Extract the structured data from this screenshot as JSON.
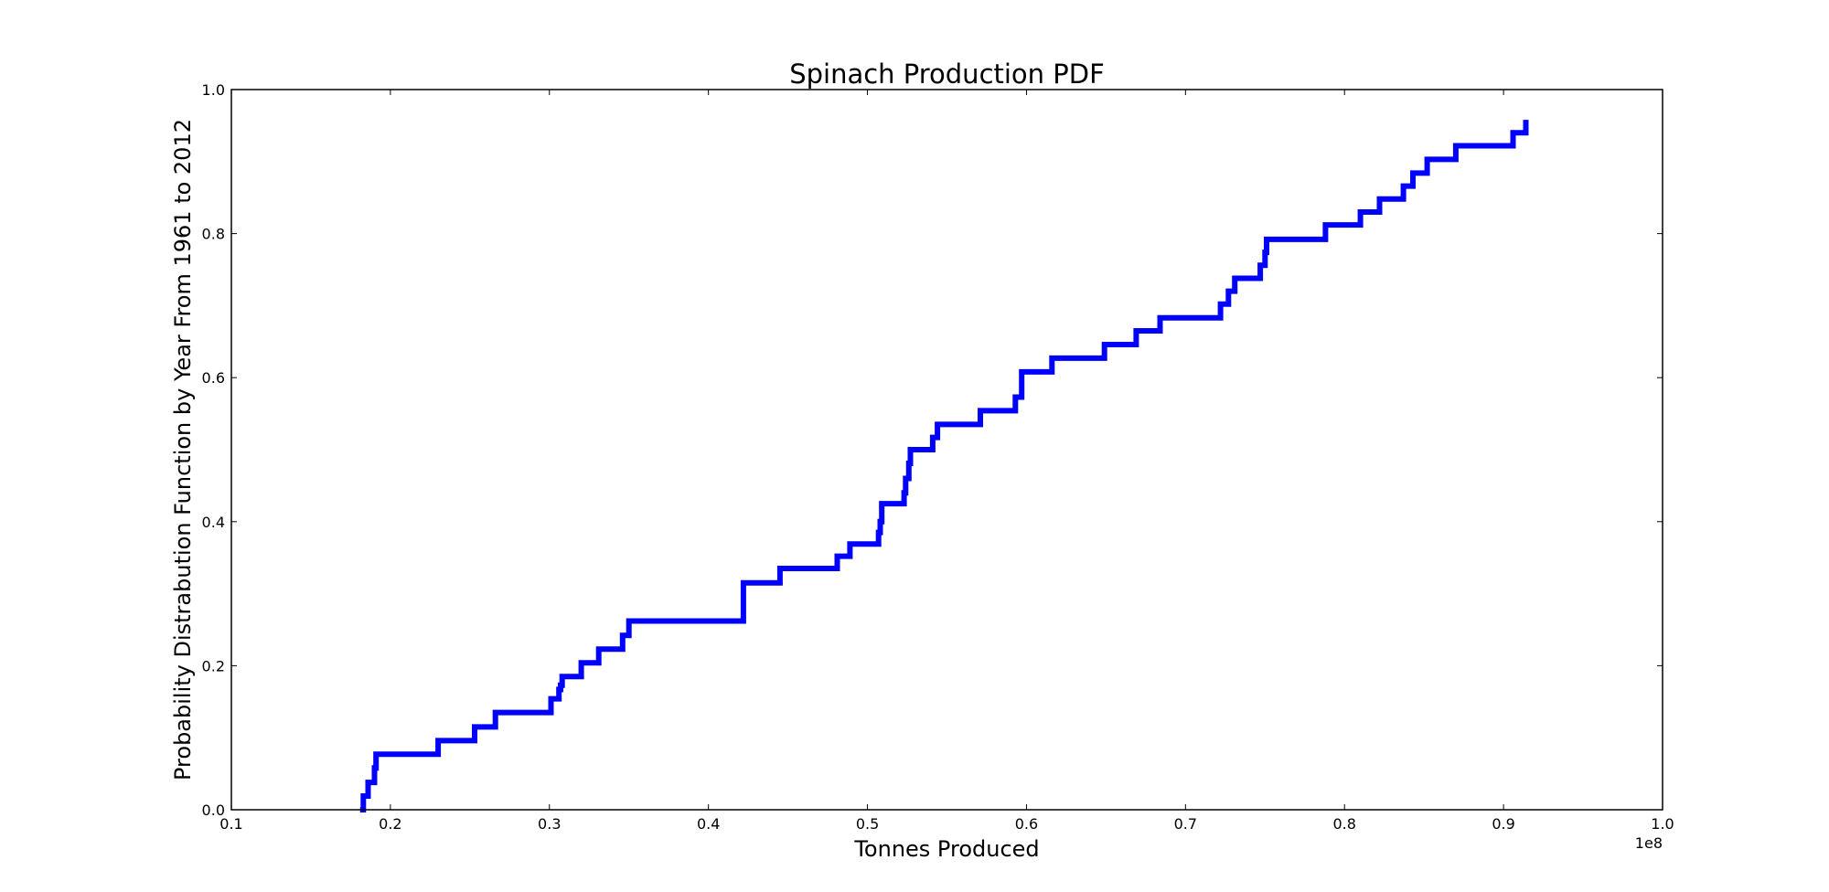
{
  "chart_data": {
    "type": "line",
    "step": true,
    "title": "Spinach Production PDF",
    "xlabel": "Tonnes Produced",
    "ylabel": "Probability Distrabution Function by Year From 1961 to 2012",
    "x_offset_label": "1e8",
    "xlim": [
      0.1,
      1.0
    ],
    "ylim": [
      0.0,
      1.0
    ],
    "x_ticks": [
      "0.1",
      "0.2",
      "0.3",
      "0.4",
      "0.5",
      "0.6",
      "0.7",
      "0.8",
      "0.9",
      "1.0"
    ],
    "y_ticks": [
      "0.0",
      "0.2",
      "0.4",
      "0.6",
      "0.8",
      "1.0"
    ],
    "grid": false,
    "legend": "none",
    "line_color": "#0000ff",
    "series": [
      {
        "x": [
          0.181,
          0.183,
          0.186,
          0.19,
          0.191,
          0.23,
          0.253,
          0.266,
          0.301,
          0.306,
          0.307,
          0.308,
          0.32,
          0.331,
          0.346,
          0.35,
          0.422,
          0.445,
          0.481,
          0.489,
          0.507,
          0.508,
          0.509,
          0.523,
          0.524,
          0.526,
          0.527,
          0.541,
          0.544,
          0.571,
          0.593,
          0.597,
          0.616,
          0.649,
          0.669,
          0.684,
          0.722,
          0.727,
          0.731,
          0.747,
          0.75,
          0.751,
          0.788,
          0.81,
          0.822,
          0.837,
          0.843,
          0.852,
          0.87,
          0.906,
          0.914
        ],
        "y": [
          0.0,
          0.019,
          0.038,
          0.058,
          0.077,
          0.096,
          0.115,
          0.135,
          0.154,
          0.167,
          0.173,
          0.185,
          0.204,
          0.223,
          0.242,
          0.262,
          0.315,
          0.335,
          0.352,
          0.369,
          0.385,
          0.4,
          0.425,
          0.44,
          0.46,
          0.481,
          0.5,
          0.517,
          0.535,
          0.554,
          0.573,
          0.608,
          0.627,
          0.646,
          0.665,
          0.683,
          0.702,
          0.72,
          0.738,
          0.756,
          0.774,
          0.792,
          0.812,
          0.83,
          0.848,
          0.866,
          0.884,
          0.903,
          0.922,
          0.94,
          0.958
        ]
      }
    ]
  }
}
